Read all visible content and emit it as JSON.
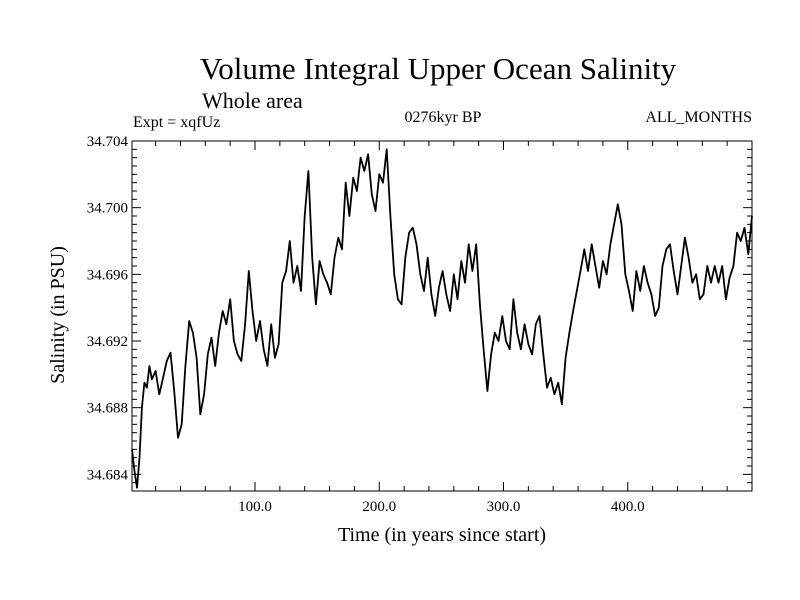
{
  "chart_data": {
    "type": "line",
    "title": "Volume Integral Upper Ocean Salinity",
    "subtitle": "Whole area",
    "left_label": "Expt = xqfUz",
    "center_label": "0276kyr BP",
    "right_label": "ALL_MONTHS",
    "xlabel": "Time (in years since start)",
    "ylabel": "Salinity (in PSU)",
    "xlim": [
      1,
      500
    ],
    "ylim": [
      34.683,
      34.704
    ],
    "xticks": [
      100,
      200,
      300,
      400
    ],
    "xtick_labels": [
      "100.0",
      "200.0",
      "300.0",
      "400.0"
    ],
    "yticks": [
      34.684,
      34.688,
      34.692,
      34.696,
      34.7,
      34.704
    ],
    "ytick_labels": [
      "34.684",
      "34.688",
      "34.692",
      "34.696",
      "34.700",
      "34.704"
    ],
    "grid": false,
    "line_color": "#000000",
    "series": [
      {
        "name": "Salinity",
        "x": [
          1,
          3,
          5,
          7,
          9,
          11,
          13,
          15,
          17,
          20,
          23,
          26,
          29,
          32,
          35,
          38,
          41,
          44,
          47,
          50,
          53,
          56,
          59,
          62,
          65,
          68,
          71,
          74,
          77,
          80,
          83,
          86,
          89,
          92,
          95,
          98,
          101,
          104,
          107,
          110,
          113,
          116,
          119,
          122,
          125,
          128,
          131,
          134,
          137,
          140,
          143,
          146,
          149,
          152,
          155,
          158,
          161,
          164,
          167,
          170,
          173,
          176,
          179,
          182,
          185,
          188,
          191,
          194,
          197,
          200,
          203,
          206,
          209,
          212,
          215,
          218,
          221,
          224,
          227,
          230,
          233,
          236,
          239,
          242,
          245,
          248,
          251,
          254,
          257,
          260,
          263,
          266,
          269,
          272,
          275,
          278,
          281,
          284,
          287,
          290,
          293,
          296,
          299,
          302,
          305,
          308,
          311,
          314,
          317,
          320,
          323,
          326,
          329,
          332,
          335,
          338,
          341,
          344,
          347,
          350,
          353,
          356,
          359,
          362,
          365,
          368,
          371,
          374,
          377,
          380,
          383,
          386,
          389,
          392,
          395,
          398,
          401,
          404,
          407,
          410,
          413,
          416,
          419,
          422,
          425,
          428,
          431,
          434,
          437,
          440,
          443,
          446,
          449,
          452,
          455,
          458,
          461,
          464,
          467,
          470,
          473,
          476,
          479,
          482,
          485,
          488,
          491,
          494,
          497,
          500
        ],
        "values": [
          34.6855,
          34.6842,
          34.6832,
          34.685,
          34.688,
          34.6895,
          34.6892,
          34.6905,
          34.6897,
          34.6902,
          34.6888,
          34.6898,
          34.6908,
          34.6913,
          34.689,
          34.6862,
          34.687,
          34.6905,
          34.6932,
          34.6925,
          34.691,
          34.6876,
          34.6888,
          34.6912,
          34.6922,
          34.6905,
          34.6925,
          34.6938,
          34.693,
          34.6945,
          34.692,
          34.6912,
          34.6908,
          34.693,
          34.6962,
          34.6938,
          34.692,
          34.6932,
          34.6915,
          34.6905,
          34.693,
          34.691,
          34.6918,
          34.6955,
          34.6962,
          34.698,
          34.6955,
          34.6965,
          34.695,
          34.6995,
          34.7022,
          34.697,
          34.6942,
          34.6968,
          34.696,
          34.6955,
          34.6948,
          34.697,
          34.6982,
          34.6975,
          34.7015,
          34.6995,
          34.7018,
          34.701,
          34.703,
          34.7022,
          34.7032,
          34.7008,
          34.6998,
          34.702,
          34.7015,
          34.7035,
          34.6995,
          34.696,
          34.6945,
          34.6942,
          34.697,
          34.6985,
          34.6988,
          34.6978,
          34.696,
          34.695,
          34.697,
          34.6948,
          34.6935,
          34.6952,
          34.6962,
          34.6948,
          34.6938,
          34.696,
          34.6945,
          34.6968,
          34.6955,
          34.6978,
          34.6962,
          34.6978,
          34.6942,
          34.6915,
          34.689,
          34.6912,
          34.6925,
          34.692,
          34.6935,
          34.692,
          34.6915,
          34.6945,
          34.6925,
          34.6915,
          34.693,
          34.6918,
          34.6912,
          34.693,
          34.6935,
          34.6912,
          34.6892,
          34.6898,
          34.6888,
          34.6895,
          34.6882,
          34.691,
          34.6925,
          34.6938,
          34.695,
          34.6962,
          34.6975,
          34.6962,
          34.6978,
          34.6965,
          34.6952,
          34.6968,
          34.696,
          34.6978,
          34.699,
          34.7002,
          34.699,
          34.696,
          34.695,
          34.6938,
          34.6962,
          34.695,
          34.6965,
          34.6955,
          34.6948,
          34.6935,
          34.694,
          34.6965,
          34.6975,
          34.6978,
          34.6962,
          34.6948,
          34.6965,
          34.6982,
          34.697,
          34.6955,
          34.696,
          34.6945,
          34.6948,
          34.6965,
          34.6955,
          34.6965,
          34.6955,
          34.6965,
          34.6945,
          34.6958,
          34.6965,
          34.6985,
          34.698,
          34.6988,
          34.6972,
          34.6995
        ]
      }
    ]
  }
}
